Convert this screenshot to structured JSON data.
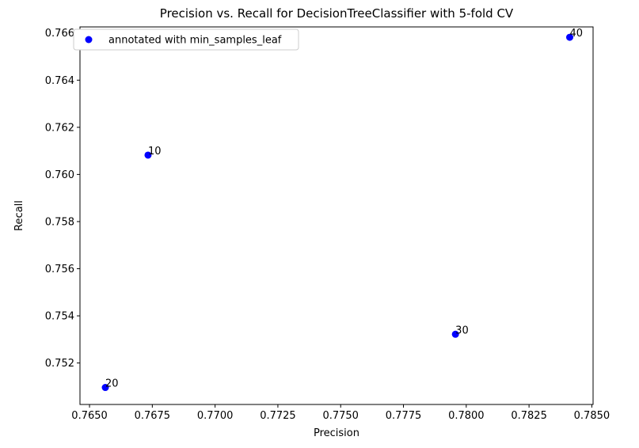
{
  "chart_data": {
    "type": "scatter",
    "title": "Precision vs. Recall for DecisionTreeClassifier with 5-fold CV",
    "xlabel": "Precision",
    "ylabel": "Recall",
    "xlim": [
      0.76462,
      0.78505
    ],
    "ylim": [
      0.75024,
      0.76626
    ],
    "x_ticks": [
      "0.7650",
      "0.7675",
      "0.7700",
      "0.7725",
      "0.7750",
      "0.7775",
      "0.7800",
      "0.7825",
      "0.7850"
    ],
    "y_ticks": [
      "0.752",
      "0.754",
      "0.756",
      "0.758",
      "0.760",
      "0.762",
      "0.764",
      "0.766"
    ],
    "grid": false,
    "legend_placement": "top-left",
    "series": [
      {
        "name": "annotated with min_samples_leaf",
        "color": "#0000ff",
        "points": [
          {
            "x": 0.76733,
            "y": 0.76082,
            "label": "10"
          },
          {
            "x": 0.76563,
            "y": 0.75096,
            "label": "20"
          },
          {
            "x": 0.77957,
            "y": 0.75322,
            "label": "30"
          },
          {
            "x": 0.78412,
            "y": 0.76582,
            "label": "40"
          }
        ]
      }
    ]
  }
}
